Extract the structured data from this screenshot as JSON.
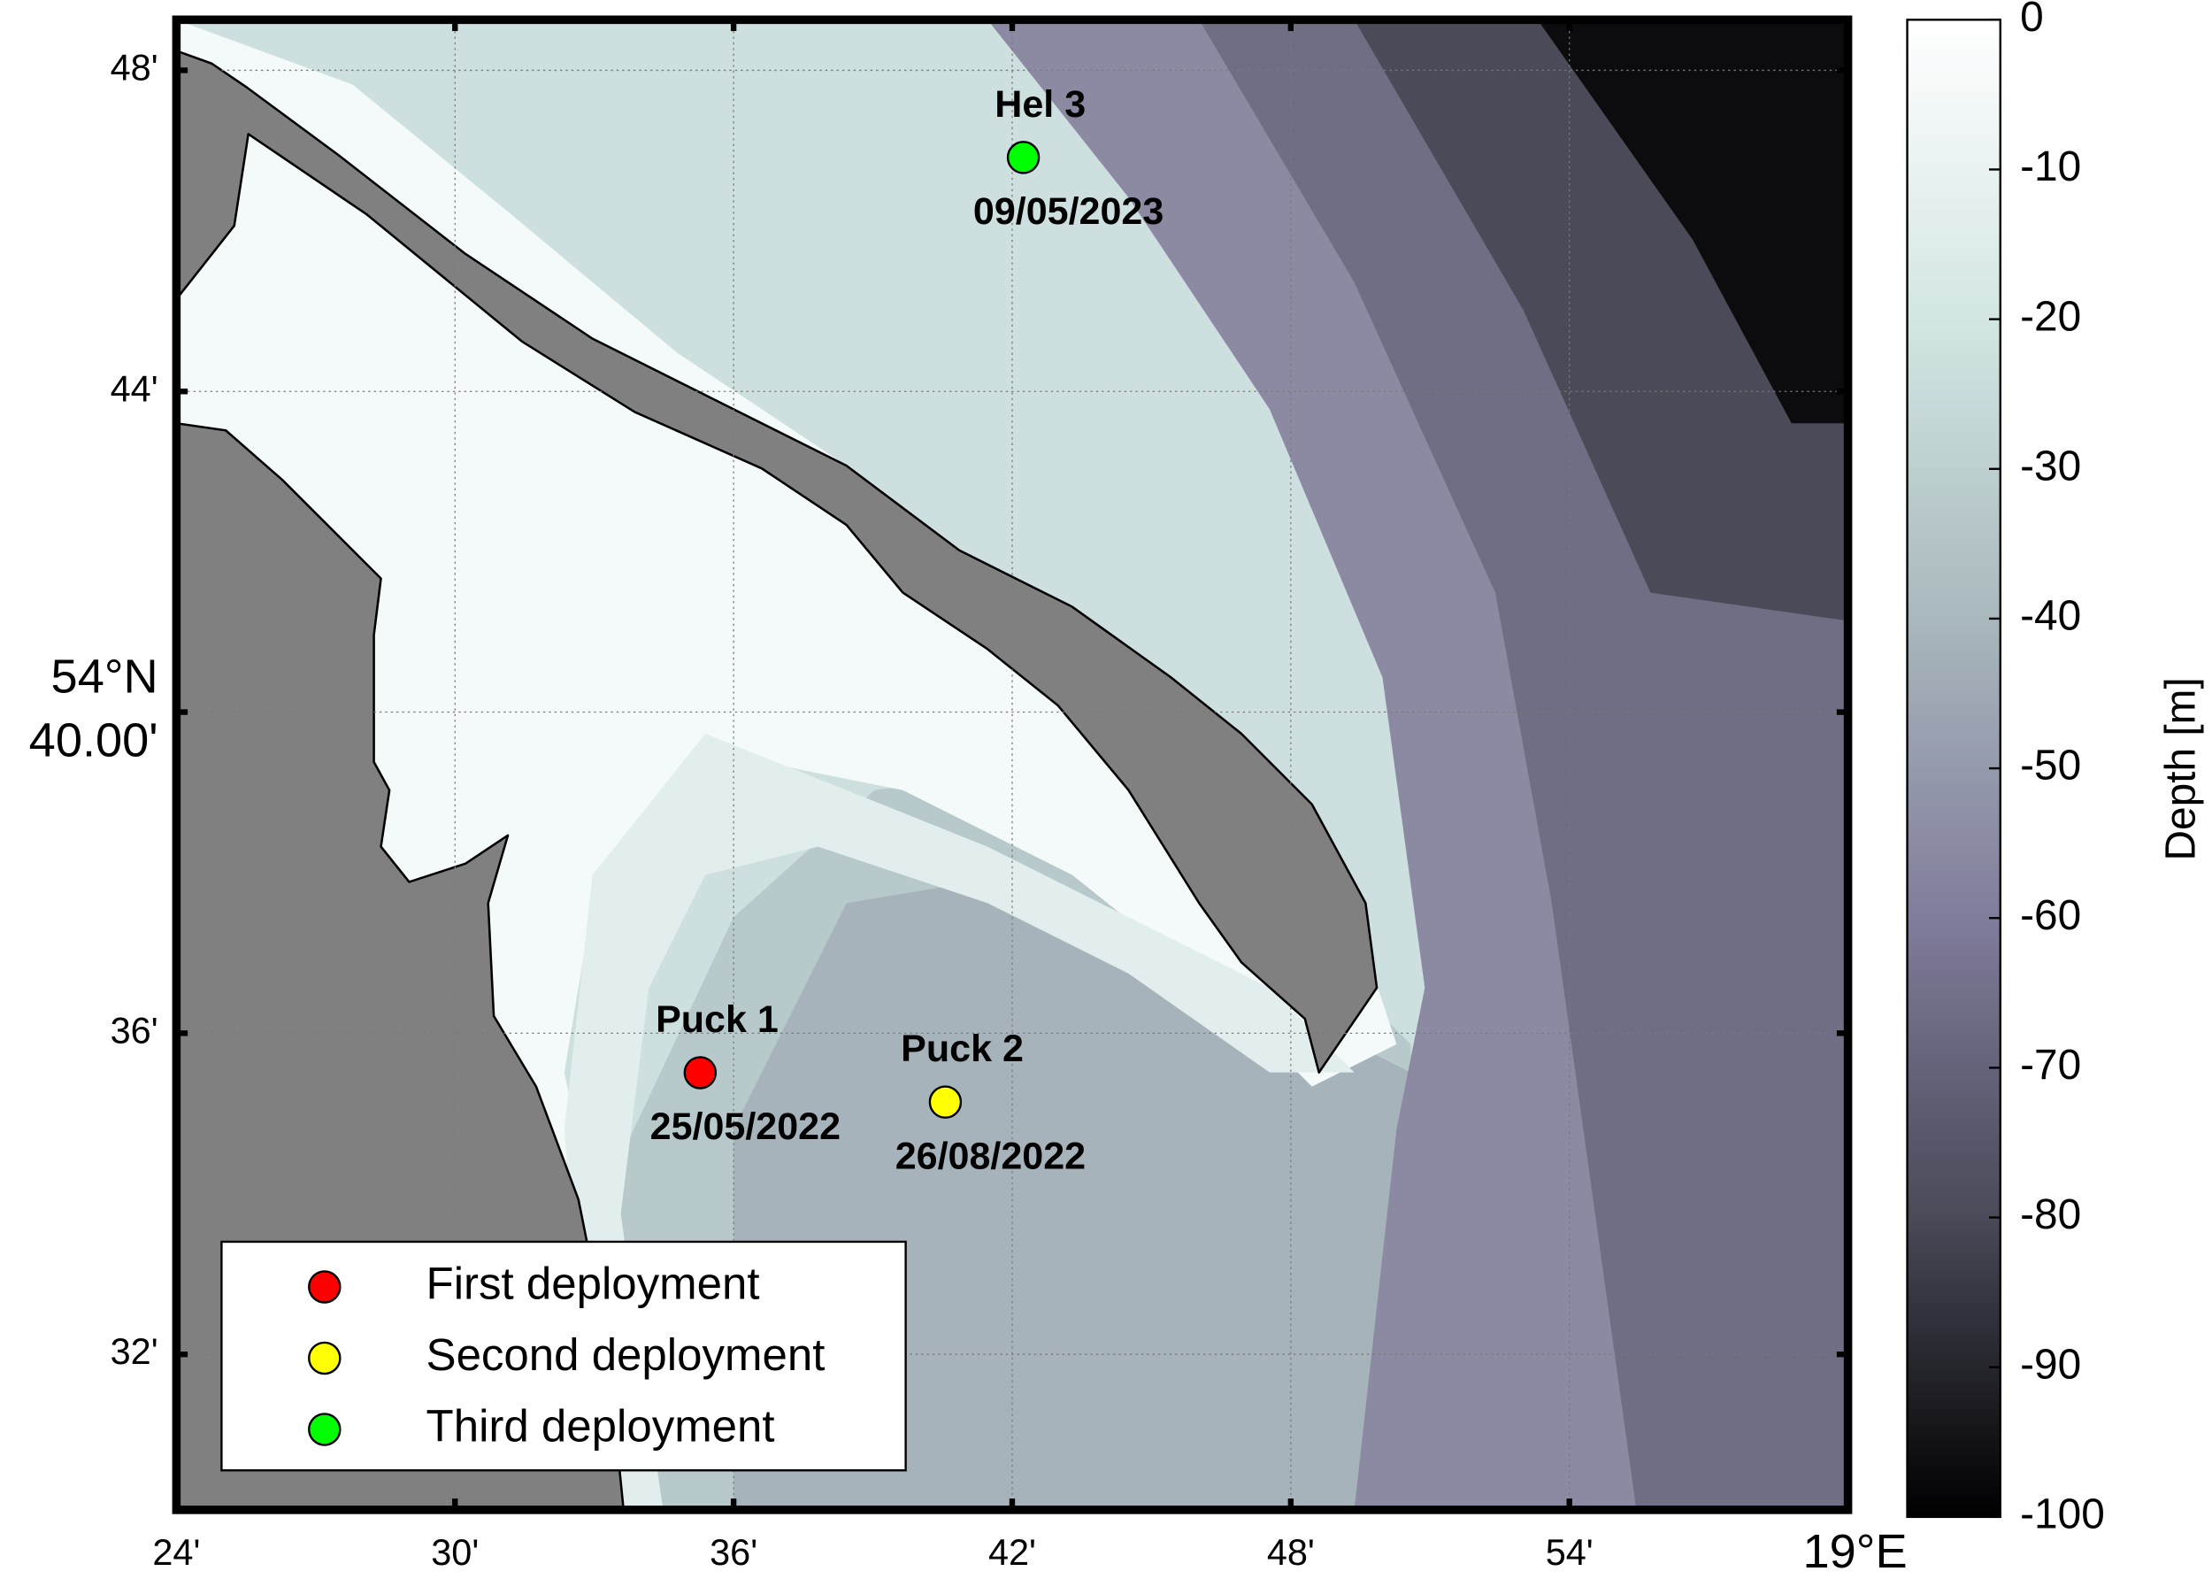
{
  "map": {
    "xaxis": {
      "lim": [
        18.4,
        19.0
      ],
      "ticks": [
        {
          "value": 18.4,
          "label": "24'"
        },
        {
          "value": 18.5,
          "label": "30'"
        },
        {
          "value": 18.6,
          "label": "36'"
        },
        {
          "value": 18.7,
          "label": "42'"
        },
        {
          "value": 18.8,
          "label": "48'"
        },
        {
          "value": 18.9,
          "label": "54'"
        },
        {
          "value": 19.0,
          "label": "19°E"
        }
      ]
    },
    "yaxis": {
      "lim": [
        54.501,
        54.8105
      ],
      "ticks": [
        {
          "value": 54.8,
          "label": "48'"
        },
        {
          "value": 54.7333,
          "label": "44'"
        },
        {
          "value": 54.6667,
          "label": "54°N\n40.00'"
        },
        {
          "value": 54.6,
          "label": "36'"
        },
        {
          "value": 54.5333,
          "label": "32'"
        }
      ]
    },
    "grid": true,
    "stations": [
      {
        "name": "Puck 1",
        "date": "25/05/2022",
        "lon": 18.588,
        "lat": 54.5918,
        "color": "#ff0000",
        "deployment": "First deployment"
      },
      {
        "name": "Puck 2",
        "date": "26/08/2022",
        "lon": 18.676,
        "lat": 54.5857,
        "color": "#ffff00",
        "deployment": "Second deployment"
      },
      {
        "name": "Hel 3",
        "date": "09/05/2023",
        "lon": 18.704,
        "lat": 54.7819,
        "color": "#00ff00",
        "deployment": "Third deployment"
      }
    ],
    "colorbar": {
      "label": "Depth [m]",
      "lim": [
        -100,
        0
      ],
      "ticks": [
        0,
        -10,
        -20,
        -30,
        -40,
        -50,
        -60,
        -70,
        -80,
        -90,
        -100
      ]
    }
  }
}
